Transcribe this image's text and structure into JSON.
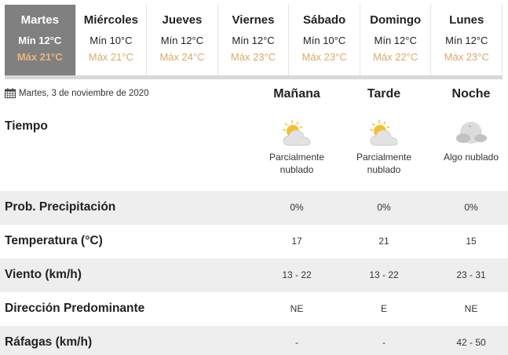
{
  "days": [
    {
      "name": "Martes",
      "min": "Mín 12°C",
      "max": "Máx 21°C",
      "active": true
    },
    {
      "name": "Miércoles",
      "min": "Mín 10°C",
      "max": "Máx 21°C"
    },
    {
      "name": "Jueves",
      "min": "Mín 12°C",
      "max": "Máx 24°C"
    },
    {
      "name": "Viernes",
      "min": "Mín 12°C",
      "max": "Máx 23°C"
    },
    {
      "name": "Sábado",
      "min": "Mín 10°C",
      "max": "Máx 23°C"
    },
    {
      "name": "Domingo",
      "min": "Mín 12°C",
      "max": "Máx 22°C"
    },
    {
      "name": "Lunes",
      "min": "Mín 12°C",
      "max": "Máx 23°C"
    }
  ],
  "date": {
    "icon": "calendar-icon",
    "text": "Martes, 3 de noviembre de 2020"
  },
  "columns": [
    "Mañana",
    "Tarde",
    "Noche"
  ],
  "weather": {
    "label": "Tiempo",
    "values": [
      {
        "icon": "partly-cloudy-day-icon",
        "text": "Parcialmente nublado"
      },
      {
        "icon": "partly-cloudy-day-icon",
        "text": "Parcialmente nublado"
      },
      {
        "icon": "partly-cloudy-night-icon",
        "text": "Algo nublado"
      }
    ]
  },
  "rows": [
    {
      "label": "Prob. Precipitación",
      "values": [
        "0%",
        "0%",
        "0%"
      ]
    },
    {
      "label": "Temperatura (°C)",
      "values": [
        "17",
        "21",
        "15"
      ]
    },
    {
      "label": "Viento (km/h)",
      "values": [
        "13 - 22",
        "13 - 22",
        "23 - 31"
      ]
    },
    {
      "label": "Dirección Predominante",
      "values": [
        "NE",
        "E",
        "NE"
      ]
    },
    {
      "label": "Ráfagas (km/h)",
      "values": [
        "-",
        "-",
        "42 - 50"
      ]
    }
  ],
  "colors": {
    "active_tab": "#808080",
    "max_temp": "#d9a96a",
    "stripe": "#eeeeee"
  }
}
